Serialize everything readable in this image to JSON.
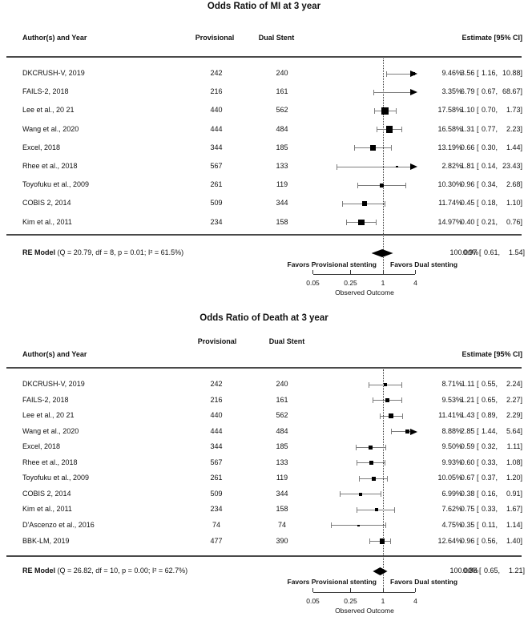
{
  "chart_data": [
    {
      "type": "forest",
      "title": "Odds Ratio of MI at 3 year",
      "col_headers": {
        "author": "Author(s) and Year",
        "provisional": "Provisional",
        "dual_stent": "Dual Stent",
        "estimate": "Estimate [95% CI]"
      },
      "x_axis": {
        "scale": "log",
        "ticks": [
          0.05,
          0.25,
          1,
          4
        ],
        "label": "Observed Outcome"
      },
      "favors_left": "Favors Provisional stenting",
      "favors_right": "Favors Dual stenting",
      "studies": [
        {
          "label": "DKCRUSH-V, 2019",
          "provisional": 242,
          "dual_stent": 240,
          "weight_pct": 9.46,
          "or": 3.56,
          "ci_low": 1.16,
          "ci_high": 10.88
        },
        {
          "label": "FAILS-2, 2018",
          "provisional": 216,
          "dual_stent": 161,
          "weight_pct": 3.35,
          "or": 6.79,
          "ci_low": 0.67,
          "ci_high": 68.67
        },
        {
          "label": "Lee et al., 20 21",
          "provisional": 440,
          "dual_stent": 562,
          "weight_pct": 17.58,
          "or": 1.1,
          "ci_low": 0.7,
          "ci_high": 1.73
        },
        {
          "label": "Wang et al., 2020",
          "provisional": 444,
          "dual_stent": 484,
          "weight_pct": 16.58,
          "or": 1.31,
          "ci_low": 0.77,
          "ci_high": 2.23
        },
        {
          "label": "Excel, 2018",
          "provisional": 344,
          "dual_stent": 185,
          "weight_pct": 13.19,
          "or": 0.66,
          "ci_low": 0.3,
          "ci_high": 1.44
        },
        {
          "label": "Rhee et al., 2018",
          "provisional": 567,
          "dual_stent": 133,
          "weight_pct": 2.82,
          "or": 1.81,
          "ci_low": 0.14,
          "ci_high": 23.43
        },
        {
          "label": "Toyofuku et al., 2009",
          "provisional": 261,
          "dual_stent": 119,
          "weight_pct": 10.3,
          "or": 0.96,
          "ci_low": 0.34,
          "ci_high": 2.68
        },
        {
          "label": "COBIS 2, 2014",
          "provisional": 509,
          "dual_stent": 344,
          "weight_pct": 11.74,
          "or": 0.45,
          "ci_low": 0.18,
          "ci_high": 1.1
        },
        {
          "label": "Kim et al., 2011",
          "provisional": 234,
          "dual_stent": 158,
          "weight_pct": 14.97,
          "or": 0.4,
          "ci_low": 0.21,
          "ci_high": 0.76
        }
      ],
      "re_model": {
        "label": "RE Model",
        "stats": "(Q = 20.79, df = 8, p = 0.01; I² = 61.5%)",
        "weight_pct": 100.0,
        "or": 0.97,
        "ci_low": 0.61,
        "ci_high": 1.54
      }
    },
    {
      "type": "forest",
      "title": "Odds Ratio of Death at 3 year",
      "col_headers": {
        "author": "Author(s) and Year",
        "provisional": "Provisional",
        "dual_stent": "Dual Stent",
        "estimate": "Estimate [95% CI]"
      },
      "x_axis": {
        "scale": "log",
        "ticks": [
          0.05,
          0.25,
          1,
          4
        ],
        "label": "Observed Outcome"
      },
      "favors_left": "Favors Provisional stenting",
      "favors_right": "Favors Dual stenting",
      "studies": [
        {
          "label": "DKCRUSH-V, 2019",
          "provisional": 242,
          "dual_stent": 240,
          "weight_pct": 8.71,
          "or": 1.11,
          "ci_low": 0.55,
          "ci_high": 2.24
        },
        {
          "label": "FAILS-2, 2018",
          "provisional": 216,
          "dual_stent": 161,
          "weight_pct": 9.53,
          "or": 1.21,
          "ci_low": 0.65,
          "ci_high": 2.27
        },
        {
          "label": "Lee et al., 20 21",
          "provisional": 440,
          "dual_stent": 562,
          "weight_pct": 11.41,
          "or": 1.43,
          "ci_low": 0.89,
          "ci_high": 2.29
        },
        {
          "label": "Wang et al., 2020",
          "provisional": 444,
          "dual_stent": 484,
          "weight_pct": 8.88,
          "or": 2.85,
          "ci_low": 1.44,
          "ci_high": 5.64
        },
        {
          "label": "Excel, 2018",
          "provisional": 344,
          "dual_stent": 185,
          "weight_pct": 9.5,
          "or": 0.59,
          "ci_low": 0.32,
          "ci_high": 1.11
        },
        {
          "label": "Rhee et al., 2018",
          "provisional": 567,
          "dual_stent": 133,
          "weight_pct": 9.93,
          "or": 0.6,
          "ci_low": 0.33,
          "ci_high": 1.08
        },
        {
          "label": "Toyofuku et al., 2009",
          "provisional": 261,
          "dual_stent": 119,
          "weight_pct": 10.05,
          "or": 0.67,
          "ci_low": 0.37,
          "ci_high": 1.2
        },
        {
          "label": "COBIS 2, 2014",
          "provisional": 509,
          "dual_stent": 344,
          "weight_pct": 6.99,
          "or": 0.38,
          "ci_low": 0.16,
          "ci_high": 0.91
        },
        {
          "label": "Kim et al., 2011",
          "provisional": 234,
          "dual_stent": 158,
          "weight_pct": 7.62,
          "or": 0.75,
          "ci_low": 0.33,
          "ci_high": 1.67
        },
        {
          "label": "D'Ascenzo et al., 2016",
          "provisional": 74,
          "dual_stent": 74,
          "weight_pct": 4.75,
          "or": 0.35,
          "ci_low": 0.11,
          "ci_high": 1.14
        },
        {
          "label": "BBK-LM, 2019",
          "provisional": 477,
          "dual_stent": 390,
          "weight_pct": 12.64,
          "or": 0.96,
          "ci_low": 0.56,
          "ci_high": 1.4
        }
      ],
      "re_model": {
        "label": "RE Model",
        "stats": "(Q = 26.82, df = 10, p = 0.00; I² = 62.7%)",
        "weight_pct": 100.0,
        "or": 0.88,
        "ci_low": 0.65,
        "ci_high": 1.21
      }
    }
  ],
  "colors": {
    "marker": "#000000",
    "ci_line": "#7d7d7d",
    "rule": "#4a4a4a",
    "axis": "#333333"
  }
}
